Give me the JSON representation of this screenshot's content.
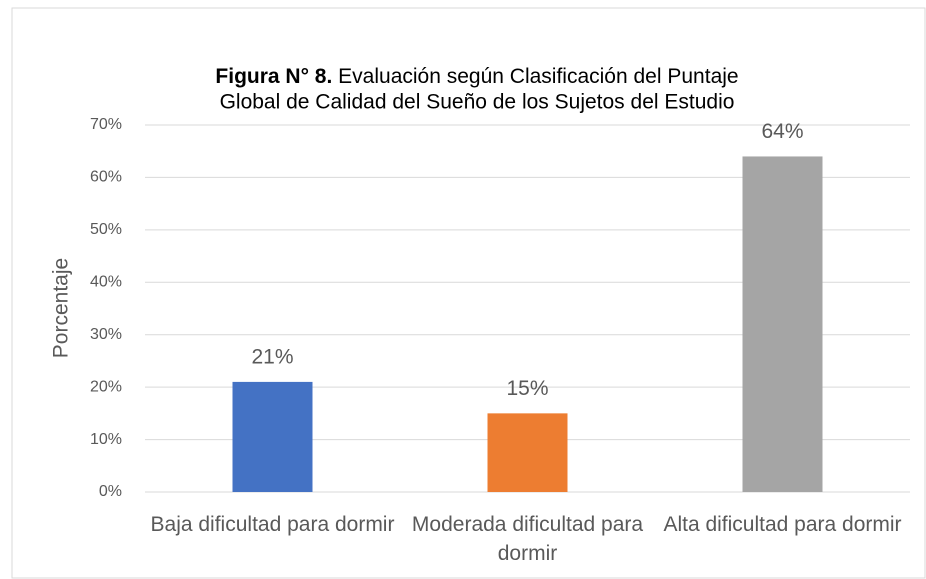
{
  "chart_data": {
    "type": "bar",
    "title": [
      "Figura N° 8.",
      "Evaluación según Clasificación del Puntaje",
      "Global de Calidad del Sueño de los Sujetos del Estudio"
    ],
    "y_label": "Porcentaje",
    "categories": [
      "Baja dificultad para dormir",
      "Moderada dificultad para dormir",
      "Alta dificultad para dormir"
    ],
    "values": [
      21,
      15,
      64
    ],
    "value_labels": [
      "21%",
      "15%",
      "64%"
    ],
    "colors": [
      "#4472c4",
      "#ed7d31",
      "#a5a5a5"
    ],
    "ylim": [
      0,
      70
    ],
    "yticks": [
      {
        "value": 0,
        "label": "0%"
      },
      {
        "value": 10,
        "label": "10%"
      },
      {
        "value": 20,
        "label": "20%"
      },
      {
        "value": 30,
        "label": "30%"
      },
      {
        "value": 40,
        "label": "40%"
      },
      {
        "value": 50,
        "label": "50%"
      },
      {
        "value": 60,
        "label": "60%"
      },
      {
        "value": 70,
        "label": "70%"
      }
    ],
    "grid": true
  }
}
